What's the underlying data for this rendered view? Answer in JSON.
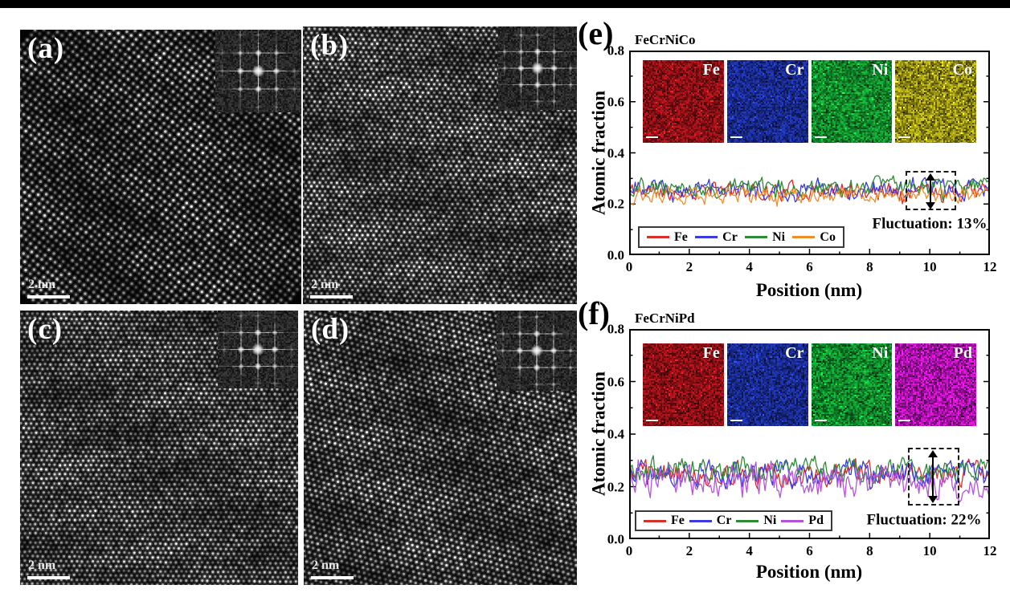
{
  "figure": {
    "panels": [
      {
        "label": "(a)",
        "scale_bar_text": "2 nm"
      },
      {
        "label": "(b)",
        "scale_bar_text": "2 nm"
      },
      {
        "label": "(c)",
        "scale_bar_text": "2 nm"
      },
      {
        "label": "(d)",
        "scale_bar_text": "2 nm"
      }
    ]
  },
  "chart_data": [
    {
      "type": "line",
      "panel_label": "(e)",
      "title": "FeCrNiCo",
      "xlabel": "Position (nm)",
      "ylabel": "Atomic fraction",
      "xlim": [
        0,
        12
      ],
      "ylim": [
        0.0,
        0.8
      ],
      "x_ticks": [
        "0",
        "2",
        "4",
        "6",
        "8",
        "10",
        "12"
      ],
      "y_ticks": [
        "0.0",
        "0.2",
        "0.4",
        "0.6",
        "0.8"
      ],
      "grid": false,
      "legend_position": "bottom-left",
      "annotation": "Fluctuation: 13%",
      "eds_maps": [
        {
          "label": "Fe",
          "color": "#9c1118"
        },
        {
          "label": "Cr",
          "color": "#1c2f9e"
        },
        {
          "label": "Ni",
          "color": "#119a31"
        },
        {
          "label": "Co",
          "color": "#a7a012"
        }
      ],
      "series": [
        {
          "name": "Fe",
          "color": "#d7302b",
          "mean": 0.252,
          "amplitude": 0.03,
          "n_points": 240,
          "seed": 11
        },
        {
          "name": "Cr",
          "color": "#3b3be0",
          "mean": 0.257,
          "amplitude": 0.032,
          "n_points": 240,
          "seed": 23
        },
        {
          "name": "Ni",
          "color": "#2f8a35",
          "mean": 0.266,
          "amplitude": 0.032,
          "n_points": 240,
          "seed": 37
        },
        {
          "name": "Co",
          "color": "#ef8d2b",
          "mean": 0.237,
          "amplitude": 0.027,
          "n_points": 240,
          "seed": 53
        }
      ]
    },
    {
      "type": "line",
      "panel_label": "(f)",
      "title": "FeCrNiPd",
      "xlabel": "Position (nm)",
      "ylabel": "Atomic fraction",
      "xlim": [
        0,
        12
      ],
      "ylim": [
        0.0,
        0.8
      ],
      "x_ticks": [
        "0",
        "2",
        "4",
        "6",
        "8",
        "10",
        "12"
      ],
      "y_ticks": [
        "0.0",
        "0.2",
        "0.4",
        "0.6",
        "0.8"
      ],
      "grid": false,
      "legend_position": "bottom-left",
      "annotation": "Fluctuation: 22%",
      "eds_maps": [
        {
          "label": "Fe",
          "color": "#9c1118"
        },
        {
          "label": "Cr",
          "color": "#1c2f9e"
        },
        {
          "label": "Ni",
          "color": "#119a31"
        },
        {
          "label": "Pd",
          "color": "#bd12bd"
        }
      ],
      "series": [
        {
          "name": "Fe",
          "color": "#d7302b",
          "mean": 0.246,
          "amplitude": 0.04,
          "n_points": 240,
          "seed": 61
        },
        {
          "name": "Cr",
          "color": "#3b3be0",
          "mean": 0.246,
          "amplitude": 0.044,
          "n_points": 240,
          "seed": 71
        },
        {
          "name": "Ni",
          "color": "#2f8a35",
          "mean": 0.262,
          "amplitude": 0.04,
          "n_points": 240,
          "seed": 83
        },
        {
          "name": "Pd",
          "color": "#b455d8",
          "mean": 0.218,
          "amplitude": 0.052,
          "n_points": 240,
          "seed": 97
        }
      ]
    }
  ]
}
